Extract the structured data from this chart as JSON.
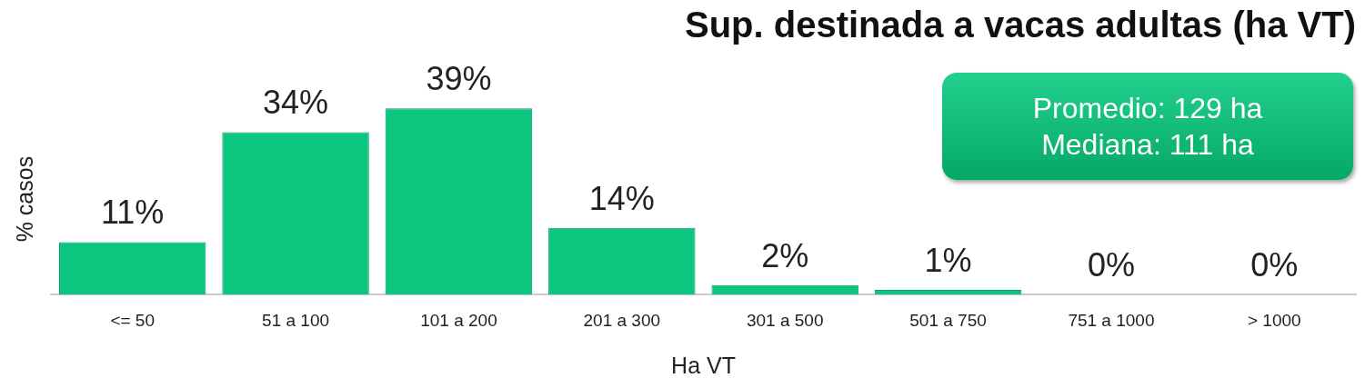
{
  "chart_data": {
    "type": "bar",
    "title": "Sup. destinada a vacas adultas (ha VT)",
    "xlabel": "Ha VT",
    "ylabel": "% casos",
    "categories": [
      "<= 50",
      "51 a 100",
      "101 a 200",
      "201 a 300",
      "301 a 500",
      "501 a 750",
      "751 a 1000",
      "> 1000"
    ],
    "values": [
      11,
      34,
      39,
      14,
      2,
      1,
      0,
      0
    ],
    "value_labels": [
      "11%",
      "34%",
      "39%",
      "14%",
      "2%",
      "1%",
      "0%",
      "0%"
    ],
    "color": "#0cc680",
    "tick_labels": "x",
    "grid": false,
    "legend": false,
    "annotations": [
      "Promedio: 129 ha\nMediana: 111 ha"
    ]
  }
}
